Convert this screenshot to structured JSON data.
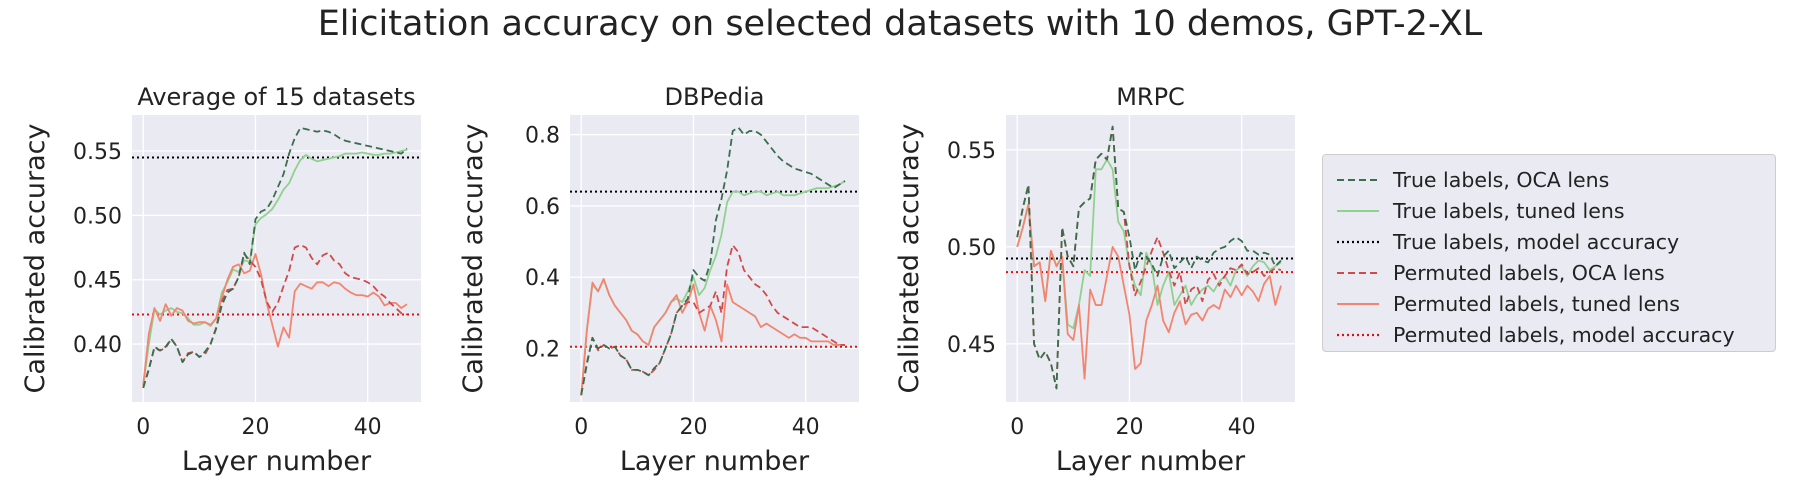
{
  "title": "Elicitation accuracy on selected datasets with 10 demos, GPT-2-XL",
  "colors": {
    "panel_bg": "#eaeaf2",
    "grid": "#ffffff",
    "true_oca": "#3a6e4c",
    "true_tuned": "#8fd18f",
    "true_model": "#000000",
    "perm_oca": "#d14a4a",
    "perm_tuned": "#f28570",
    "perm_model": "#e01010"
  },
  "legend": [
    {
      "key": "true_oca",
      "label": "True labels, OCA lens",
      "style": "dashed"
    },
    {
      "key": "true_tuned",
      "label": "True labels, tuned lens",
      "style": "solid"
    },
    {
      "key": "true_model",
      "label": "True labels, model accuracy",
      "style": "dotted"
    },
    {
      "key": "perm_oca",
      "label": "Permuted labels, OCA lens",
      "style": "dashed"
    },
    {
      "key": "perm_tuned",
      "label": "Permuted labels, tuned lens",
      "style": "solid"
    },
    {
      "key": "perm_model",
      "label": "Permuted labels, model accuracy",
      "style": "dotted"
    }
  ],
  "chart_data": [
    {
      "type": "line",
      "title": "Average of 15 datasets",
      "xlabel": "Layer number",
      "ylabel": "Calibrated accuracy",
      "xlim": [
        -2,
        49.5
      ],
      "ylim": [
        0.355,
        0.578
      ],
      "xticks": [
        0,
        20,
        40
      ],
      "yticks": [
        0.4,
        0.45,
        0.5,
        0.55
      ],
      "ytick_labels": [
        "0.40",
        "0.45",
        "0.50",
        "0.55"
      ],
      "grid": true,
      "series": [
        {
          "name": "True labels, OCA lens",
          "key": "true_oca",
          "style": "dashed",
          "x_start": 0,
          "values": [
            0.366,
            0.38,
            0.398,
            0.395,
            0.398,
            0.404,
            0.398,
            0.386,
            0.392,
            0.394,
            0.39,
            0.394,
            0.4,
            0.412,
            0.43,
            0.44,
            0.443,
            0.452,
            0.471,
            0.462,
            0.497,
            0.503,
            0.505,
            0.512,
            0.522,
            0.532,
            0.548,
            0.56,
            0.568,
            0.567,
            0.566,
            0.565,
            0.566,
            0.565,
            0.563,
            0.56,
            0.558,
            0.557,
            0.556,
            0.555,
            0.554,
            0.553,
            0.552,
            0.551,
            0.55,
            0.549,
            0.548,
            0.552
          ]
        },
        {
          "name": "True labels, tuned lens",
          "key": "true_tuned",
          "style": "solid",
          "x_start": 0,
          "values": [
            0.368,
            0.4,
            0.427,
            0.423,
            0.426,
            0.428,
            0.425,
            0.424,
            0.42,
            0.415,
            0.415,
            0.417,
            0.414,
            0.42,
            0.44,
            0.448,
            0.458,
            0.456,
            0.465,
            0.464,
            0.493,
            0.498,
            0.501,
            0.505,
            0.512,
            0.52,
            0.525,
            0.535,
            0.543,
            0.547,
            0.544,
            0.542,
            0.543,
            0.544,
            0.545,
            0.546,
            0.548,
            0.548,
            0.548,
            0.549,
            0.548,
            0.547,
            0.547,
            0.548,
            0.548,
            0.549,
            0.55,
            0.551
          ]
        },
        {
          "name": "Permuted labels, OCA lens",
          "key": "perm_oca",
          "style": "dashed",
          "x_start": 0,
          "values": [
            0.366,
            0.381,
            0.397,
            0.395,
            0.397,
            0.404,
            0.398,
            0.386,
            0.393,
            0.394,
            0.39,
            0.392,
            0.4,
            0.413,
            0.433,
            0.442,
            0.443,
            0.452,
            0.47,
            0.465,
            0.46,
            0.45,
            0.433,
            0.425,
            0.432,
            0.445,
            0.457,
            0.475,
            0.477,
            0.475,
            0.467,
            0.462,
            0.469,
            0.471,
            0.465,
            0.462,
            0.455,
            0.452,
            0.451,
            0.45,
            0.448,
            0.445,
            0.44,
            0.437,
            0.432,
            0.428,
            0.424,
            0.423
          ]
        },
        {
          "name": "Permuted labels, tuned lens",
          "key": "perm_tuned",
          "style": "solid",
          "x_start": 0,
          "values": [
            0.368,
            0.408,
            0.428,
            0.418,
            0.431,
            0.422,
            0.428,
            0.426,
            0.418,
            0.416,
            0.417,
            0.417,
            0.415,
            0.42,
            0.436,
            0.45,
            0.46,
            0.462,
            0.455,
            0.457,
            0.47,
            0.454,
            0.432,
            0.415,
            0.398,
            0.413,
            0.405,
            0.441,
            0.447,
            0.445,
            0.443,
            0.448,
            0.448,
            0.445,
            0.448,
            0.447,
            0.443,
            0.44,
            0.438,
            0.438,
            0.437,
            0.44,
            0.437,
            0.43,
            0.432,
            0.432,
            0.428,
            0.431
          ]
        }
      ],
      "hlines": [
        {
          "key": "true_model",
          "y": 0.545
        },
        {
          "key": "perm_model",
          "y": 0.423
        }
      ]
    },
    {
      "type": "line",
      "title": "DBPedia",
      "xlabel": "Layer number",
      "ylabel": "Calibrated accuracy",
      "xlim": [
        -2,
        49.5
      ],
      "ylim": [
        0.05,
        0.855
      ],
      "xticks": [
        0,
        20,
        40
      ],
      "yticks": [
        0.2,
        0.4,
        0.6,
        0.8
      ],
      "ytick_labels": [
        "0.2",
        "0.4",
        "0.6",
        "0.8"
      ],
      "grid": true,
      "series": [
        {
          "name": "True labels, OCA lens",
          "key": "true_oca",
          "style": "dashed",
          "x_start": 0,
          "values": [
            0.07,
            0.155,
            0.23,
            0.2,
            0.21,
            0.2,
            0.205,
            0.18,
            0.17,
            0.14,
            0.14,
            0.135,
            0.125,
            0.145,
            0.16,
            0.2,
            0.24,
            0.3,
            0.32,
            0.34,
            0.42,
            0.4,
            0.39,
            0.44,
            0.56,
            0.62,
            0.7,
            0.81,
            0.82,
            0.8,
            0.81,
            0.81,
            0.8,
            0.78,
            0.76,
            0.74,
            0.725,
            0.715,
            0.705,
            0.7,
            0.695,
            0.69,
            0.68,
            0.67,
            0.66,
            0.65,
            0.66,
            0.67
          ]
        },
        {
          "name": "True labels, tuned lens",
          "key": "true_tuned",
          "style": "solid",
          "x_start": 0,
          "values": [
            0.068,
            0.25,
            0.38,
            0.36,
            0.395,
            0.35,
            0.32,
            0.3,
            0.28,
            0.25,
            0.24,
            0.22,
            0.21,
            0.26,
            0.28,
            0.3,
            0.33,
            0.34,
            0.33,
            0.36,
            0.4,
            0.35,
            0.37,
            0.42,
            0.46,
            0.52,
            0.61,
            0.64,
            0.64,
            0.63,
            0.635,
            0.64,
            0.64,
            0.63,
            0.635,
            0.64,
            0.63,
            0.63,
            0.63,
            0.635,
            0.64,
            0.645,
            0.65,
            0.65,
            0.65,
            0.655,
            0.66,
            0.67
          ]
        },
        {
          "name": "Permuted labels, OCA lens",
          "key": "perm_oca",
          "style": "dashed",
          "x_start": 0,
          "values": [
            0.07,
            0.16,
            0.23,
            0.195,
            0.21,
            0.2,
            0.205,
            0.18,
            0.17,
            0.14,
            0.14,
            0.135,
            0.125,
            0.14,
            0.16,
            0.2,
            0.24,
            0.3,
            0.32,
            0.33,
            0.33,
            0.3,
            0.31,
            0.32,
            0.36,
            0.3,
            0.43,
            0.49,
            0.47,
            0.42,
            0.4,
            0.38,
            0.37,
            0.35,
            0.32,
            0.3,
            0.29,
            0.28,
            0.27,
            0.26,
            0.26,
            0.26,
            0.25,
            0.24,
            0.23,
            0.22,
            0.21,
            0.21
          ]
        },
        {
          "name": "Permuted labels, tuned lens",
          "key": "perm_tuned",
          "style": "solid",
          "x_start": 0,
          "values": [
            0.068,
            0.25,
            0.385,
            0.36,
            0.395,
            0.35,
            0.32,
            0.3,
            0.28,
            0.25,
            0.24,
            0.22,
            0.21,
            0.26,
            0.28,
            0.3,
            0.33,
            0.35,
            0.3,
            0.33,
            0.38,
            0.3,
            0.25,
            0.32,
            0.28,
            0.22,
            0.38,
            0.33,
            0.32,
            0.31,
            0.3,
            0.29,
            0.26,
            0.27,
            0.26,
            0.25,
            0.24,
            0.23,
            0.24,
            0.23,
            0.23,
            0.22,
            0.22,
            0.22,
            0.22,
            0.21,
            0.21,
            0.21
          ]
        }
      ],
      "hlines": [
        {
          "key": "true_model",
          "y": 0.64
        },
        {
          "key": "perm_model",
          "y": 0.205
        }
      ]
    },
    {
      "type": "line",
      "title": "MRPC",
      "xlabel": "Layer number",
      "ylabel": "Calibrated accuracy",
      "xlim": [
        -2,
        49.5
      ],
      "ylim": [
        0.42,
        0.568
      ],
      "xticks": [
        0,
        20,
        40
      ],
      "yticks": [
        0.45,
        0.5,
        0.55
      ],
      "ytick_labels": [
        "0.45",
        "0.50",
        "0.55"
      ],
      "grid": true,
      "series": [
        {
          "name": "True labels, OCA lens",
          "key": "true_oca",
          "style": "dashed",
          "x_start": 0,
          "values": [
            0.505,
            0.52,
            0.532,
            0.45,
            0.442,
            0.446,
            0.44,
            0.427,
            0.51,
            0.495,
            0.49,
            0.52,
            0.523,
            0.525,
            0.545,
            0.548,
            0.545,
            0.562,
            0.52,
            0.518,
            0.505,
            0.488,
            0.497,
            0.495,
            0.491,
            0.485,
            0.495,
            0.498,
            0.489,
            0.492,
            0.495,
            0.489,
            0.495,
            0.493,
            0.492,
            0.497,
            0.499,
            0.5,
            0.503,
            0.505,
            0.503,
            0.498,
            0.498,
            0.496,
            0.497,
            0.496,
            0.49,
            0.493
          ]
        },
        {
          "name": "True labels, tuned lens",
          "key": "true_tuned",
          "style": "solid",
          "x_start": 0,
          "values": [
            0.5,
            0.51,
            0.522,
            0.49,
            0.492,
            0.472,
            0.498,
            0.49,
            0.495,
            0.46,
            0.458,
            0.47,
            0.488,
            0.485,
            0.54,
            0.54,
            0.545,
            0.54,
            0.513,
            0.508,
            0.49,
            0.48,
            0.475,
            0.497,
            0.49,
            0.47,
            0.48,
            0.487,
            0.47,
            0.475,
            0.48,
            0.47,
            0.475,
            0.478,
            0.48,
            0.477,
            0.482,
            0.485,
            0.48,
            0.488,
            0.49,
            0.485,
            0.49,
            0.493,
            0.492,
            0.488,
            0.49,
            0.492
          ]
        },
        {
          "name": "Permuted labels, OCA lens",
          "key": "perm_oca",
          "style": "dashed",
          "x_start": 0,
          "values": [
            0.505,
            0.52,
            0.532,
            0.45,
            0.442,
            0.446,
            0.44,
            0.427,
            0.51,
            0.495,
            0.49,
            0.52,
            0.523,
            0.525,
            0.545,
            0.548,
            0.545,
            0.562,
            0.52,
            0.518,
            0.49,
            0.475,
            0.482,
            0.49,
            0.498,
            0.505,
            0.497,
            0.488,
            0.48,
            0.487,
            0.47,
            0.478,
            0.48,
            0.472,
            0.483,
            0.486,
            0.48,
            0.485,
            0.489,
            0.488,
            0.491,
            0.486,
            0.487,
            0.489,
            0.485,
            0.487,
            0.489,
            0.488
          ]
        },
        {
          "name": "Permuted labels, tuned lens",
          "key": "perm_tuned",
          "style": "solid",
          "x_start": 0,
          "values": [
            0.5,
            0.51,
            0.522,
            0.49,
            0.492,
            0.472,
            0.498,
            0.49,
            0.495,
            0.455,
            0.452,
            0.47,
            0.432,
            0.478,
            0.47,
            0.47,
            0.485,
            0.5,
            0.495,
            0.48,
            0.465,
            0.437,
            0.44,
            0.462,
            0.47,
            0.48,
            0.462,
            0.456,
            0.466,
            0.472,
            0.46,
            0.465,
            0.466,
            0.462,
            0.468,
            0.47,
            0.468,
            0.478,
            0.474,
            0.48,
            0.475,
            0.48,
            0.477,
            0.472,
            0.481,
            0.485,
            0.47,
            0.48
          ]
        }
      ],
      "hlines": [
        {
          "key": "true_model",
          "y": 0.494
        },
        {
          "key": "perm_model",
          "y": 0.487
        }
      ]
    }
  ]
}
